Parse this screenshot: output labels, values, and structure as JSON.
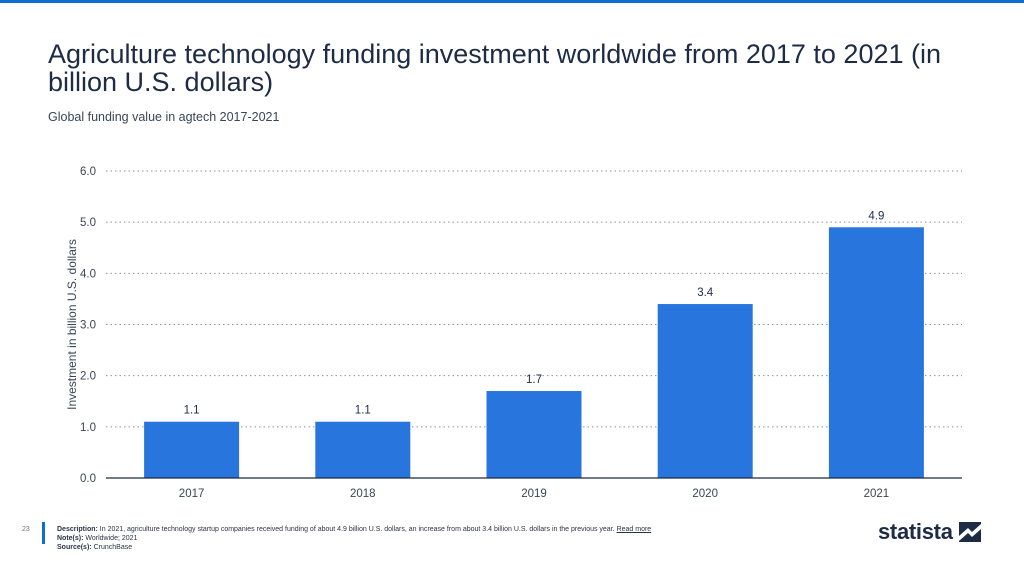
{
  "header": {
    "title": "Agriculture technology funding investment worldwide from 2017 to 2021 (in billion U.S. dollars)",
    "subtitle": "Global funding value in agtech 2017-2021"
  },
  "chart_data": {
    "type": "bar",
    "categories": [
      "2017",
      "2018",
      "2019",
      "2020",
      "2021"
    ],
    "values": [
      1.1,
      1.1,
      1.7,
      3.4,
      4.9
    ],
    "value_labels": [
      "1.1",
      "1.1",
      "1.7",
      "3.4",
      "4.9"
    ],
    "ylabel": "Investment in billion U.S. dollars",
    "xlabel": "",
    "ylim": [
      0,
      6
    ],
    "yticks": [
      "0.0",
      "1.0",
      "2.0",
      "3.0",
      "4.0",
      "5.0",
      "6.0"
    ],
    "grid": true,
    "bar_color": "#2876dd"
  },
  "footer": {
    "page_number": "23",
    "description_label": "Description:",
    "description_text": "In 2021, agriculture technology startup companies received funding of about 4.9 billion U.S. dollars, an increase from about 3.4 billion U.S. dollars in the previous year.",
    "read_more": "Read more",
    "notes_label": "Note(s):",
    "notes_text": "Worldwide; 2021",
    "source_label": "Source(s):",
    "source_text": "CrunchBase"
  },
  "brand": {
    "name": "statista",
    "logo_icon": "statista-logo-icon",
    "accent_color": "#0f6fd1"
  }
}
